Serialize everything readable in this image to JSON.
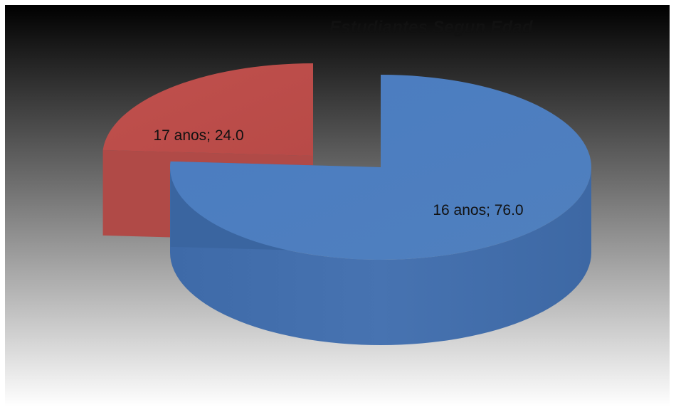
{
  "chart_data": {
    "type": "pie",
    "title": "Estudiantes Segun Edad",
    "style": "3d-exploded",
    "background": "dark-to-light vertical gradient",
    "legend": "none",
    "slices": [
      {
        "label": "16 anos",
        "value": 76.0,
        "data_label": "16 anos; 76.0",
        "color": "#4F81BD"
      },
      {
        "label": "17 anos",
        "value": 24.0,
        "data_label": "17 anos; 24.0",
        "color": "#C0504D"
      }
    ]
  }
}
